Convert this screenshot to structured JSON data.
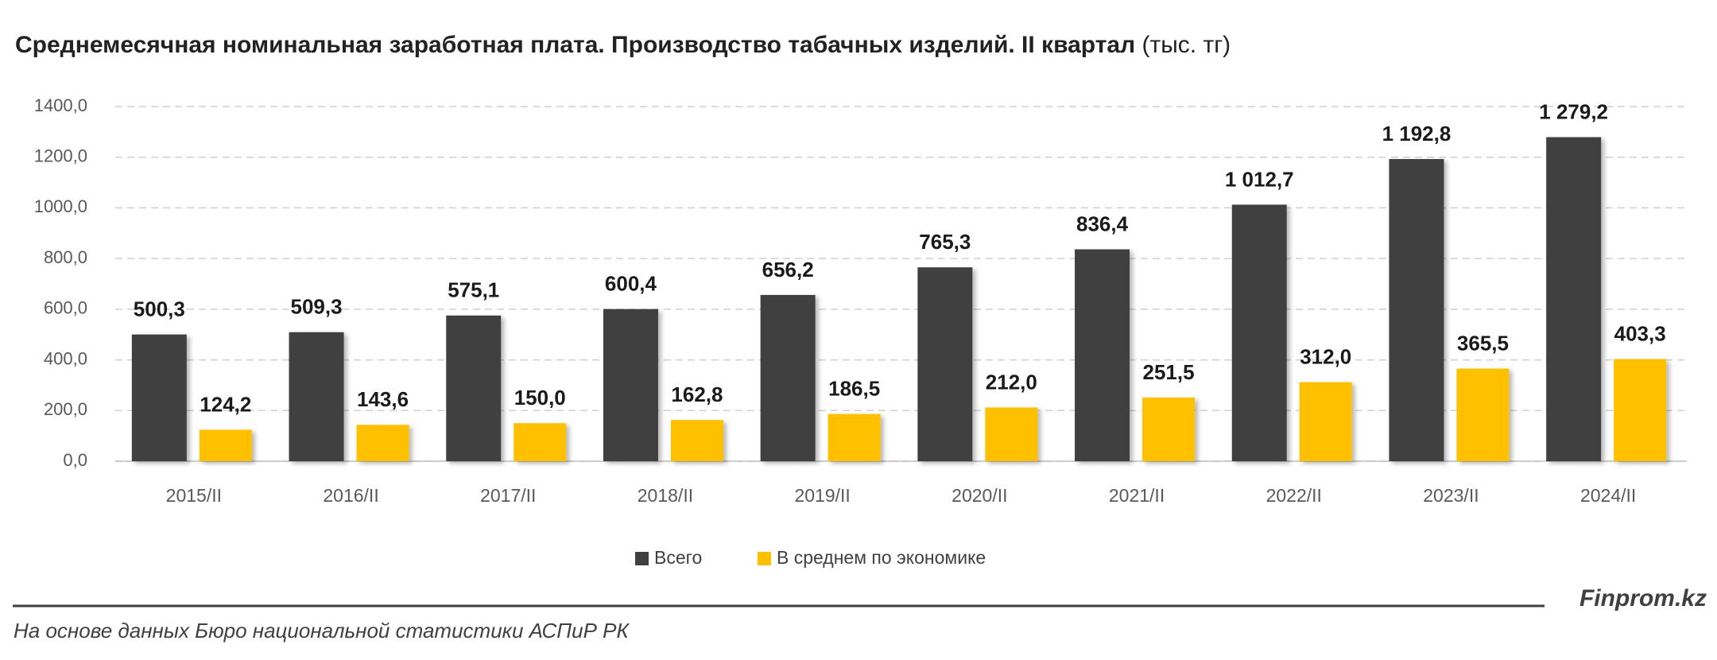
{
  "chart_data": {
    "type": "bar",
    "title": "Среднемесячная номинальная заработная плата. Производство табачных изделий. II квартал",
    "subtitle": "(тыс. тг)",
    "categories": [
      "2015/II",
      "2016/II",
      "2017/II",
      "2018/II",
      "2019/II",
      "2020/II",
      "2021/II",
      "2022/II",
      "2023/II",
      "2024/II"
    ],
    "series": [
      {
        "name": "Всего",
        "color": "#404040",
        "values": [
          500.3,
          509.3,
          575.1,
          600.4,
          656.2,
          765.3,
          836.4,
          1012.7,
          1192.8,
          1279.2
        ],
        "value_labels": [
          "500,3",
          "509,3",
          "575,1",
          "600,4",
          "656,2",
          "765,3",
          "836,4",
          "1 012,7",
          "1 192,8",
          "1 279,2"
        ]
      },
      {
        "name": "В среднем по экономике",
        "color": "#FFC000",
        "values": [
          124.2,
          143.6,
          150.0,
          162.8,
          186.5,
          212.0,
          251.5,
          312.0,
          365.5,
          403.3
        ],
        "value_labels": [
          "124,2",
          "143,6",
          "150,0",
          "162,8",
          "186,5",
          "212,0",
          "251,5",
          "312,0",
          "365,5",
          "403,3"
        ]
      }
    ],
    "ylim": [
      0,
      1400
    ],
    "yticks": [
      {
        "value": 0,
        "label": "0,0"
      },
      {
        "value": 200,
        "label": "200,0"
      },
      {
        "value": 400,
        "label": "400,0"
      },
      {
        "value": 600,
        "label": "600,0"
      },
      {
        "value": 800,
        "label": "800,0"
      },
      {
        "value": 1000,
        "label": "1000,0"
      },
      {
        "value": 1200,
        "label": "1200,0"
      },
      {
        "value": 1400,
        "label": "1400,0"
      }
    ],
    "grid": true,
    "legend": "bottom",
    "watermark": "Finprom.kz",
    "source": "На основе данных Бюро национальной статистики АСПиР РК"
  }
}
